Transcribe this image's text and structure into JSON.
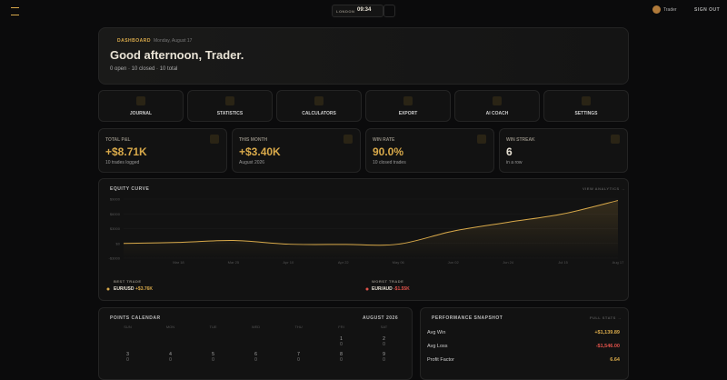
{
  "topbar": {
    "city": "LONDON",
    "time": "09:34",
    "user": "Trader",
    "signout": "SIGN OUT"
  },
  "hero": {
    "section": "DASHBOARD",
    "date": "Monday, August 17",
    "greeting": "Good afternoon, Trader.",
    "summary": "0 open · 10 closed · 10 total"
  },
  "nav": [
    "JOURNAL",
    "STATISTICS",
    "CALCULATORS",
    "EXPORT",
    "AI COACH",
    "SETTINGS"
  ],
  "stats": [
    {
      "label": "TOTAL P&L",
      "value": "+$8.71K",
      "sub": "10 trades logged"
    },
    {
      "label": "THIS MONTH",
      "value": "+$3.40K",
      "sub": "August 2026"
    },
    {
      "label": "WIN RATE",
      "value": "90.0%",
      "sub": "10 closed trades"
    },
    {
      "label": "WIN STREAK",
      "value": "6",
      "sub": "in a row"
    }
  ],
  "equity_curve": {
    "type": "line",
    "title": "EQUITY CURVE",
    "link": "VIEW ANALYTICS →",
    "categories": [
      null,
      "Mar 18",
      "Mar 25",
      "Apr 10",
      "Apr 22",
      "May 06",
      "Jun 02",
      "Jun 24",
      "Jul 15",
      "Aug 17"
    ],
    "values": [
      0,
      200,
      600,
      -150,
      -200,
      -150,
      2500,
      4300,
      6000,
      8710
    ],
    "color": "#d8a94a",
    "ylim": [
      -3000,
      9000
    ],
    "yticks": [
      {
        "value": -3000,
        "label": "-$3000"
      },
      {
        "value": 0,
        "label": "$0"
      },
      {
        "value": 3000,
        "label": "$3000"
      },
      {
        "value": 6000,
        "label": "$6000"
      },
      {
        "value": 9000,
        "label": "$9000"
      }
    ],
    "grid": true,
    "best": {
      "label": "BEST TRADE",
      "pair": "EUR/USD",
      "value": "+$3.76K"
    },
    "worst": {
      "label": "WORST TRADE",
      "pair": "EUR/AUD",
      "value": "-$1.55K"
    }
  },
  "calendar": {
    "title": "POINTS CALENDAR",
    "month": "AUGUST 2026",
    "weekdays": [
      "SUN",
      "MON",
      "TUE",
      "WED",
      "THU",
      "FRI",
      "SAT"
    ],
    "days": [
      {
        "day": 1,
        "points": 0
      },
      {
        "day": 2,
        "points": 0
      },
      {
        "day": 3,
        "points": 0
      },
      {
        "day": 4,
        "points": 0
      },
      {
        "day": 5,
        "points": 0
      },
      {
        "day": 6,
        "points": 0
      },
      {
        "day": 7,
        "points": 0
      },
      {
        "day": 8,
        "points": 0
      },
      {
        "day": 9,
        "points": 0
      }
    ]
  },
  "performance": {
    "title": "PERFORMANCE SNAPSHOT",
    "link": "FULL STATS →",
    "rows": [
      {
        "label": "Avg Win",
        "value": "+$1,139.89"
      },
      {
        "label": "Avg Loss",
        "value": "-$1,546.00"
      },
      {
        "label": "Profit Factor",
        "value": "6.64"
      }
    ]
  }
}
